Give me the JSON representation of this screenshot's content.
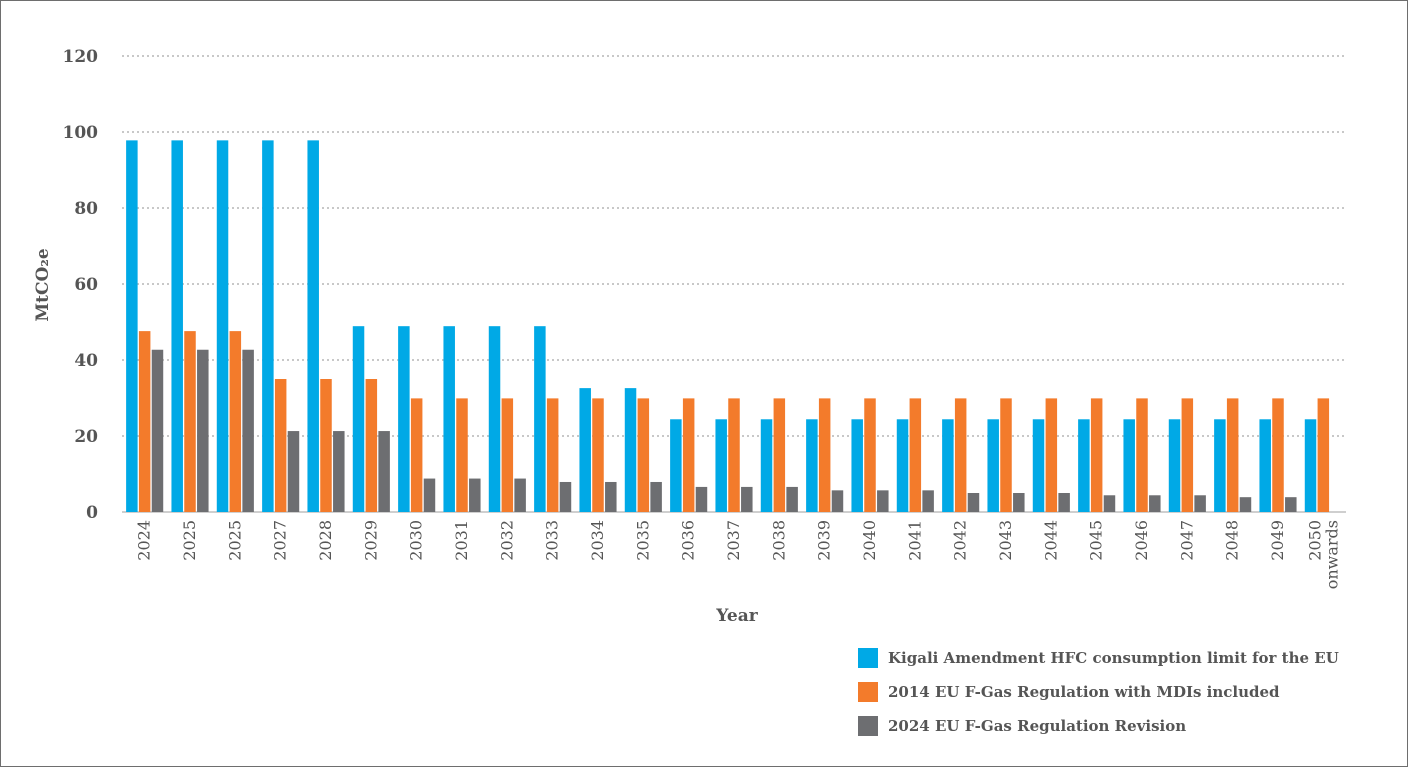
{
  "chart_data": {
    "type": "bar",
    "title": "",
    "xlabel": "Year",
    "ylabel": "MtCO₂e",
    "ylim": [
      0,
      120
    ],
    "yticks": [
      0,
      20,
      40,
      60,
      80,
      100,
      120
    ],
    "grid": true,
    "legend_position": "bottom-right",
    "categories": [
      "2024",
      "2025",
      "2025",
      "2027",
      "2028",
      "2029",
      "2030",
      "2031",
      "2032",
      "2033",
      "2034",
      "2035",
      "2036",
      "2037",
      "2038",
      "2039",
      "2040",
      "2041",
      "2042",
      "2043",
      "2044",
      "2045",
      "2046",
      "2047",
      "2048",
      "2049",
      "2050 onwards"
    ],
    "series": [
      {
        "name": "Kigali Amendment HFC consumption limit for the EU",
        "color": "#00a9e6",
        "values": [
          97.8,
          97.8,
          97.8,
          97.8,
          97.8,
          48.9,
          48.9,
          48.9,
          48.9,
          48.9,
          32.6,
          32.6,
          24.4,
          24.4,
          24.4,
          24.4,
          24.4,
          24.4,
          24.4,
          24.4,
          24.4,
          24.4,
          24.4,
          24.4,
          24.4,
          24.4,
          24.4
        ]
      },
      {
        "name": "2014 EU F-Gas Regulation with MDIs included",
        "color": "#f37b2b",
        "values": [
          47.6,
          47.6,
          47.6,
          35.0,
          35.0,
          35.0,
          29.9,
          29.9,
          29.9,
          29.9,
          29.9,
          29.9,
          29.9,
          29.9,
          29.9,
          29.9,
          29.9,
          29.9,
          29.9,
          29.9,
          29.9,
          29.9,
          29.9,
          29.9,
          29.9,
          29.9,
          29.9
        ]
      },
      {
        "name": "2024 EU F-Gas Regulation Revision",
        "color": "#6d6e71",
        "values": [
          42.7,
          42.7,
          42.7,
          21.3,
          21.3,
          21.3,
          8.8,
          8.8,
          8.8,
          7.9,
          7.9,
          7.9,
          6.6,
          6.6,
          6.6,
          5.7,
          5.7,
          5.7,
          5.0,
          5.0,
          5.0,
          4.4,
          4.4,
          4.4,
          3.9,
          3.9,
          null
        ]
      }
    ]
  },
  "colors": {
    "grid": "#a6a6a6",
    "axis": "#bfbfbf",
    "text": "#555555"
  }
}
